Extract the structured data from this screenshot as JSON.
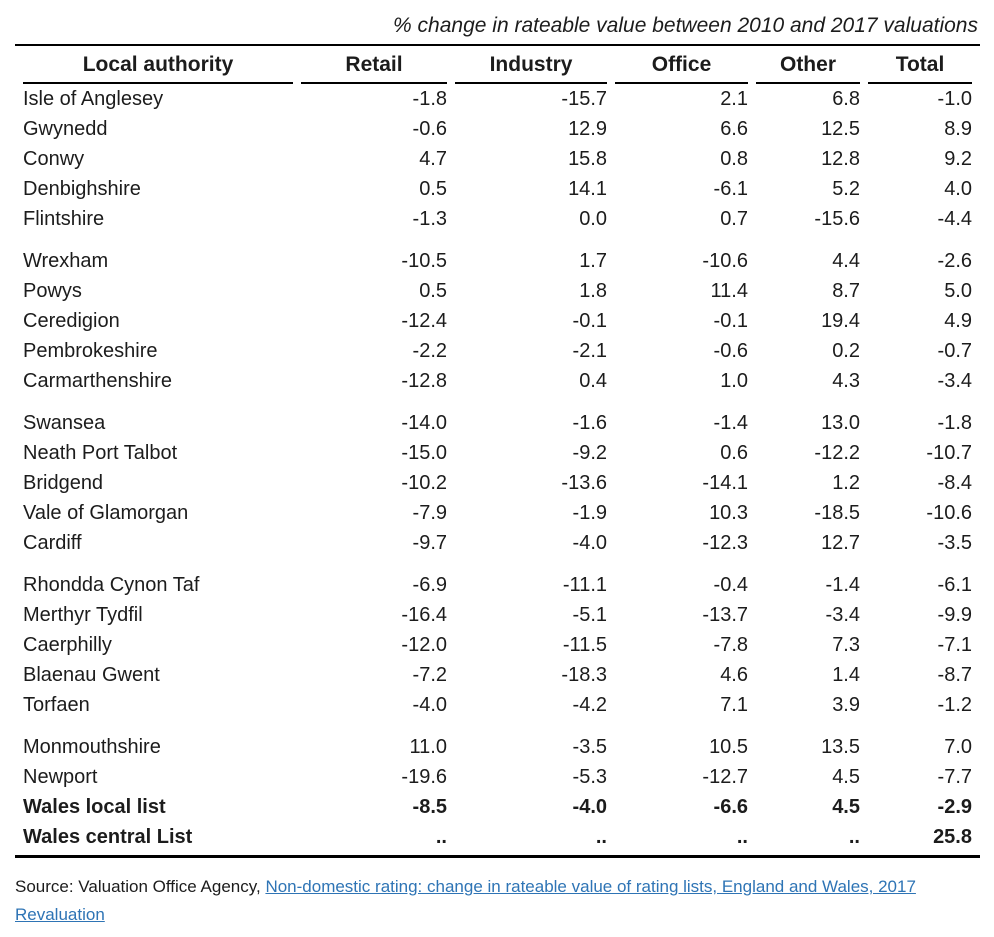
{
  "title": "% change in rateable value between 2010 and 2017 valuations",
  "table": {
    "columns": [
      "Local authority",
      "Retail",
      "Industry",
      "Office",
      "Other",
      "Total"
    ],
    "groups": [
      {
        "rows": [
          {
            "name": "Isle of Anglesey",
            "values": [
              "-1.8",
              "-15.7",
              "2.1",
              "6.8",
              "-1.0"
            ]
          },
          {
            "name": "Gwynedd",
            "values": [
              "-0.6",
              "12.9",
              "6.6",
              "12.5",
              "8.9"
            ]
          },
          {
            "name": "Conwy",
            "values": [
              "4.7",
              "15.8",
              "0.8",
              "12.8",
              "9.2"
            ]
          },
          {
            "name": "Denbighshire",
            "values": [
              "0.5",
              "14.1",
              "-6.1",
              "5.2",
              "4.0"
            ]
          },
          {
            "name": "Flintshire",
            "values": [
              "-1.3",
              "0.0",
              "0.7",
              "-15.6",
              "-4.4"
            ]
          }
        ]
      },
      {
        "rows": [
          {
            "name": "Wrexham",
            "values": [
              "-10.5",
              "1.7",
              "-10.6",
              "4.4",
              "-2.6"
            ]
          },
          {
            "name": "Powys",
            "values": [
              "0.5",
              "1.8",
              "11.4",
              "8.7",
              "5.0"
            ]
          },
          {
            "name": "Ceredigion",
            "values": [
              "-12.4",
              "-0.1",
              "-0.1",
              "19.4",
              "4.9"
            ]
          },
          {
            "name": "Pembrokeshire",
            "values": [
              "-2.2",
              "-2.1",
              "-0.6",
              "0.2",
              "-0.7"
            ]
          },
          {
            "name": "Carmarthenshire",
            "values": [
              "-12.8",
              "0.4",
              "1.0",
              "4.3",
              "-3.4"
            ]
          }
        ]
      },
      {
        "rows": [
          {
            "name": "Swansea",
            "values": [
              "-14.0",
              "-1.6",
              "-1.4",
              "13.0",
              "-1.8"
            ]
          },
          {
            "name": "Neath Port Talbot",
            "values": [
              "-15.0",
              "-9.2",
              "0.6",
              "-12.2",
              "-10.7"
            ]
          },
          {
            "name": "Bridgend",
            "values": [
              "-10.2",
              "-13.6",
              "-14.1",
              "1.2",
              "-8.4"
            ]
          },
          {
            "name": "Vale of Glamorgan",
            "values": [
              "-7.9",
              "-1.9",
              "10.3",
              "-18.5",
              "-10.6"
            ]
          },
          {
            "name": "Cardiff",
            "values": [
              "-9.7",
              "-4.0",
              "-12.3",
              "12.7",
              "-3.5"
            ]
          }
        ]
      },
      {
        "rows": [
          {
            "name": "Rhondda Cynon Taf",
            "values": [
              "-6.9",
              "-11.1",
              "-0.4",
              "-1.4",
              "-6.1"
            ]
          },
          {
            "name": "Merthyr Tydfil",
            "values": [
              "-16.4",
              "-5.1",
              "-13.7",
              "-3.4",
              "-9.9"
            ]
          },
          {
            "name": "Caerphilly",
            "values": [
              "-12.0",
              "-11.5",
              "-7.8",
              "7.3",
              "-7.1"
            ]
          },
          {
            "name": "Blaenau Gwent",
            "values": [
              "-7.2",
              "-18.3",
              "4.6",
              "1.4",
              "-8.7"
            ]
          },
          {
            "name": "Torfaen",
            "values": [
              "-4.0",
              "-4.2",
              "7.1",
              "3.9",
              "-1.2"
            ]
          }
        ]
      },
      {
        "rows": [
          {
            "name": "Monmouthshire",
            "values": [
              "11.0",
              "-3.5",
              "10.5",
              "13.5",
              "7.0"
            ]
          },
          {
            "name": "Newport",
            "values": [
              "-19.6",
              "-5.3",
              "-12.7",
              "4.5",
              "-7.7"
            ]
          },
          {
            "name": "Wales local list",
            "values": [
              "-8.5",
              "-4.0",
              "-6.6",
              "4.5",
              "-2.9"
            ],
            "bold": true
          },
          {
            "name": "Wales central List",
            "values": [
              "..",
              "..",
              "..",
              "..",
              "25.8"
            ],
            "bold": true
          }
        ]
      }
    ]
  },
  "footer": {
    "source_prefix": "Source: Valuation Office Agency, ",
    "link_text": "Non-domestic rating: change in rateable value of rating lists, England and Wales, 2017 Revaluation",
    "link_color": "#2E74B5"
  }
}
